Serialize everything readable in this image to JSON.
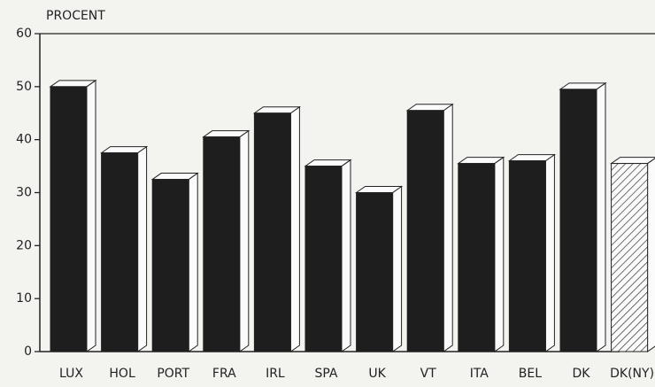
{
  "chart_data": {
    "type": "bar3d",
    "y_axis_label": "PROCENT",
    "categories": [
      "LUX",
      "HOL",
      "PORT",
      "FRA",
      "IRL",
      "SPA",
      "UK",
      "VT",
      "ITA",
      "BEL",
      "DK",
      "DK(NY)"
    ],
    "values": [
      50,
      37.5,
      32.5,
      40.5,
      45,
      35,
      30,
      45.5,
      35.5,
      36,
      49.5,
      35.5
    ],
    "bar_styles": [
      "solid",
      "solid",
      "solid",
      "solid",
      "solid",
      "solid",
      "solid",
      "solid",
      "solid",
      "solid",
      "solid",
      "hatched"
    ],
    "color": "#1e1e1e",
    "ylim": [
      0,
      60
    ],
    "yticks": [
      0,
      10,
      20,
      30,
      40,
      50,
      60
    ]
  }
}
